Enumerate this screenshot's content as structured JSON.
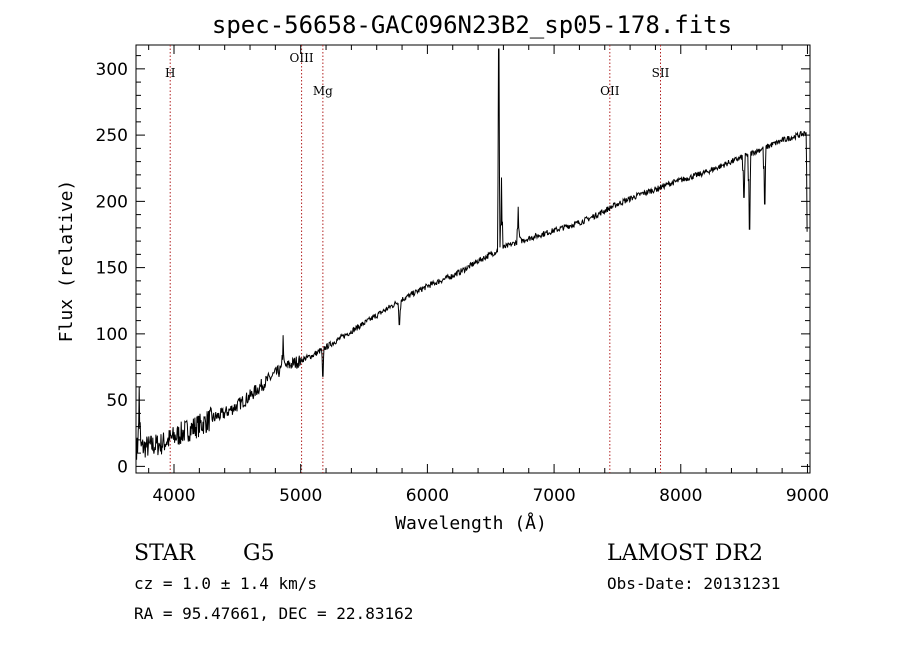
{
  "chart_data": {
    "type": "line",
    "title": "spec-56658-GAC096N23B2_sp05-178.fits",
    "xlabel": "Wavelength (Å)",
    "ylabel": "Flux (relative)",
    "xlim": [
      3700,
      9020
    ],
    "ylim": [
      -5,
      318
    ],
    "x_ticks": [
      4000,
      5000,
      6000,
      7000,
      8000,
      9000
    ],
    "y_ticks": [
      0,
      50,
      100,
      150,
      200,
      250,
      300
    ],
    "grid": false,
    "colors": {
      "spectrum": "#000000",
      "reference_lines": "#b22222",
      "axes": "#000000"
    },
    "reference_lines": [
      {
        "label": "H",
        "x": 3970
      },
      {
        "label": "OIII",
        "x": 5007
      },
      {
        "label": "Mg",
        "x": 5175
      },
      {
        "label": "OII",
        "x": 7440
      },
      {
        "label": "SII",
        "x": 7840
      }
    ],
    "spectrum": {
      "continuum": {
        "x": [
          3700,
          3800,
          3900,
          4000,
          4100,
          4200,
          4300,
          4400,
          4500,
          4600,
          4700,
          4800,
          4900,
          5000,
          5100,
          5200,
          5300,
          5400,
          5500,
          5600,
          5700,
          5800,
          5900,
          6000,
          6100,
          6200,
          6300,
          6400,
          6500,
          6600,
          6700,
          6800,
          6900,
          7000,
          7100,
          7200,
          7300,
          7400,
          7500,
          7600,
          7700,
          7800,
          7900,
          8000,
          8100,
          8200,
          8300,
          8400,
          8500,
          8600,
          8700,
          8800,
          8900,
          9000
        ],
        "y": [
          14,
          15,
          17,
          22,
          27,
          31,
          36,
          40,
          46,
          53,
          62,
          70,
          76,
          80,
          84,
          90,
          96,
          102,
          108,
          114,
          120,
          126,
          131,
          136,
          140,
          144,
          149,
          155,
          160,
          165,
          169,
          172,
          175,
          178,
          181,
          184,
          188,
          193,
          198,
          202,
          206,
          209,
          213,
          216,
          219,
          222,
          226,
          230,
          234,
          238,
          242,
          246,
          249,
          252
        ]
      },
      "features": [
        {
          "x": 3725,
          "y": 60
        },
        {
          "x": 4861,
          "y": 99
        },
        {
          "x": 5175,
          "y": 68
        },
        {
          "x": 5780,
          "y": 107
        },
        {
          "x": 6563,
          "y": 315
        },
        {
          "x": 6585,
          "y": 218
        },
        {
          "x": 6717,
          "y": 196
        },
        {
          "x": 6731,
          "y": 173
        },
        {
          "x": 8498,
          "y": 203
        },
        {
          "x": 8542,
          "y": 179
        },
        {
          "x": 8662,
          "y": 198
        },
        {
          "x": 9000,
          "y": 177
        }
      ]
    }
  },
  "info": {
    "object_class": "STAR",
    "subclass": "G5",
    "redshift": "cz = 1.0 ± 1.4 km/s",
    "coordinates": "RA =  95.47661, DEC =  22.83162",
    "survey": "LAMOST DR2",
    "obs_date": "Obs-Date: 20131231"
  }
}
